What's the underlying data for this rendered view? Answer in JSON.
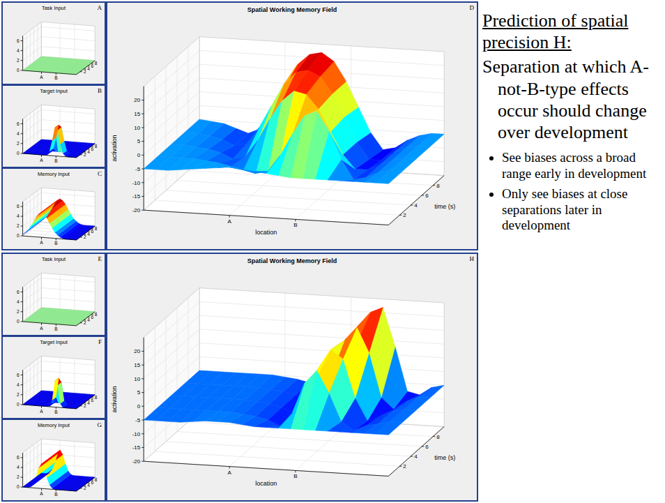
{
  "slide": {
    "heading": "Prediction of spatial precision H:",
    "text": "Separation at which A-not-B-type effects occur should change over development",
    "bullets": [
      "See biases across a broad range early in development",
      "Only see biases at close separations later in development"
    ]
  },
  "chart_data": [
    {
      "type": "surface",
      "letter": "A",
      "title": "Task Input",
      "color": "#8fe88f",
      "x": [
        0,
        5,
        10,
        15,
        20,
        25,
        30,
        35,
        40,
        45,
        50,
        55,
        60,
        65,
        70,
        75,
        80,
        85,
        90,
        95,
        100
      ],
      "xlim": [
        0,
        100
      ],
      "xticks": [
        {
          "value": 35,
          "label": "A"
        },
        {
          "value": 62,
          "label": "B"
        }
      ],
      "ylim": [
        0,
        10
      ],
      "yticks": [
        2,
        4,
        6,
        8
      ],
      "zlim": [
        0,
        7
      ],
      "zticks": [
        0,
        2,
        4,
        6
      ],
      "rows": [
        {
          "time": 0,
          "values": [
            0,
            0,
            0,
            0,
            0,
            0,
            0,
            0,
            0,
            0,
            0,
            0,
            0,
            0,
            0,
            0,
            0,
            0,
            0,
            0,
            0
          ]
        },
        {
          "time": 10,
          "values": [
            0,
            0,
            0,
            0,
            0,
            0,
            0,
            0,
            0,
            0,
            0,
            0,
            0,
            0,
            0,
            0,
            0,
            0,
            0,
            0,
            0
          ]
        }
      ]
    },
    {
      "type": "surface",
      "letter": "B",
      "title": "Target Input",
      "x": [
        0,
        5,
        10,
        15,
        20,
        25,
        30,
        35,
        40,
        45,
        50,
        55,
        60,
        65,
        70,
        75,
        80,
        85,
        90,
        95,
        100
      ],
      "xlim": [
        0,
        100
      ],
      "xticks": [
        {
          "value": 35,
          "label": "A"
        },
        {
          "value": 62,
          "label": "B"
        }
      ],
      "ylim": [
        0,
        10
      ],
      "yticks": [
        2,
        4,
        6,
        8
      ],
      "zlim": [
        0,
        7
      ],
      "zticks": [
        0,
        2,
        4,
        6
      ],
      "rows": [
        {
          "time": 0,
          "values": [
            0,
            0,
            0,
            0,
            0,
            0,
            0,
            0,
            0,
            0.1,
            0.8,
            3.0,
            5.7,
            5.3,
            2.5,
            0.6,
            0.1,
            0,
            0,
            0,
            0
          ]
        },
        {
          "time": 2,
          "values": [
            0,
            0,
            0,
            0,
            0,
            0,
            0,
            0,
            0,
            0.1,
            0.8,
            3.0,
            5.7,
            5.3,
            2.5,
            0.6,
            0.1,
            0,
            0,
            0,
            0
          ]
        },
        {
          "time": 3,
          "values": [
            0,
            0,
            0,
            0,
            0,
            0,
            0,
            0,
            0,
            0,
            0,
            0,
            0,
            0,
            0,
            0,
            0,
            0,
            0,
            0,
            0
          ]
        },
        {
          "time": 10,
          "values": [
            0,
            0,
            0,
            0,
            0,
            0,
            0,
            0,
            0,
            0,
            0,
            0,
            0,
            0,
            0,
            0,
            0,
            0,
            0,
            0,
            0
          ]
        }
      ]
    },
    {
      "type": "surface",
      "letter": "C",
      "title": "Memory Input",
      "x": [
        0,
        5,
        10,
        15,
        20,
        25,
        30,
        35,
        40,
        45,
        50,
        55,
        60,
        65,
        70,
        75,
        80,
        85,
        90,
        95,
        100
      ],
      "xlim": [
        0,
        100
      ],
      "xticks": [
        {
          "value": 35,
          "label": "A"
        },
        {
          "value": 62,
          "label": "B"
        }
      ],
      "ylim": [
        0,
        10
      ],
      "yticks": [
        2,
        4,
        6,
        8
      ],
      "zlim": [
        0,
        7
      ],
      "zticks": [
        0,
        2,
        4,
        6
      ],
      "rows": [
        {
          "time": 0,
          "values": [
            0.3,
            0.7,
            1.2,
            2.1,
            3.0,
            4.0,
            4.7,
            5.0,
            4.7,
            4.0,
            3.0,
            2.1,
            1.2,
            0.7,
            0.3,
            0.1,
            0,
            0,
            0,
            0,
            0
          ]
        },
        {
          "time": 10,
          "values": [
            0.3,
            0.7,
            1.2,
            2.1,
            3.0,
            4.0,
            4.7,
            5.0,
            4.7,
            4.0,
            3.0,
            2.1,
            1.2,
            0.7,
            0.3,
            0.1,
            0,
            0,
            0,
            0,
            0
          ]
        }
      ]
    },
    {
      "type": "surface",
      "letter": "D",
      "title": "Spatial Working Memory Field",
      "x_label": "location",
      "y_label": "time (s)",
      "z_label": "activation",
      "x": [
        0,
        5,
        10,
        15,
        20,
        25,
        30,
        35,
        40,
        45,
        50,
        55,
        60,
        65,
        70,
        75,
        80,
        85,
        90,
        95,
        100
      ],
      "xlim": [
        0,
        100
      ],
      "xticks": [
        {
          "value": 35,
          "label": "A"
        },
        {
          "value": 62,
          "label": "B"
        }
      ],
      "ylim": [
        0,
        10
      ],
      "yticks": [
        2,
        4,
        6,
        8
      ],
      "zlim": [
        -20,
        25
      ],
      "zticks": [
        -20,
        -15,
        -10,
        -5,
        0,
        5,
        10,
        15,
        20
      ],
      "rows": [
        {
          "time": 0,
          "values": [
            -5,
            -5,
            -5,
            -4.5,
            -4,
            -3.5,
            -3,
            -2.5,
            -3,
            -3.5,
            -4,
            -4.5,
            -5,
            -5,
            -5,
            -5,
            -5,
            -5,
            -5,
            -5,
            -5
          ]
        },
        {
          "time": 2.5,
          "values": [
            -5,
            -5,
            -5,
            -5,
            -5.5,
            -6,
            -7,
            -8,
            -9,
            -8,
            -2,
            6,
            13,
            15,
            8,
            -2,
            -9,
            -8,
            -6,
            -5,
            -5
          ]
        },
        {
          "time": 5,
          "values": [
            -5,
            -5,
            -5.5,
            -6,
            -7,
            -9,
            -8,
            -2,
            6,
            13,
            17,
            16,
            11,
            3,
            -5,
            -10,
            -10,
            -8,
            -6,
            -5,
            -5
          ]
        },
        {
          "time": 7.5,
          "values": [
            -5,
            -5.5,
            -6,
            -7,
            -9,
            -8,
            -2,
            6,
            14,
            19,
            20,
            18,
            12,
            4,
            -5,
            -11,
            -11,
            -8,
            -6,
            -5,
            -5
          ]
        },
        {
          "time": 10,
          "values": [
            -5,
            -5.5,
            -6,
            -7.5,
            -9,
            -7,
            0,
            9,
            17,
            21,
            22,
            19,
            12,
            3,
            -6,
            -12,
            -11,
            -8,
            -6,
            -5,
            -5
          ]
        }
      ]
    },
    {
      "type": "surface",
      "letter": "E",
      "title": "Task Input",
      "color": "#8fe88f",
      "x": [
        0,
        5,
        10,
        15,
        20,
        25,
        30,
        35,
        40,
        45,
        50,
        55,
        60,
        65,
        70,
        75,
        80,
        85,
        90,
        95,
        100
      ],
      "xlim": [
        0,
        100
      ],
      "xticks": [
        {
          "value": 35,
          "label": "A"
        },
        {
          "value": 62,
          "label": "B"
        }
      ],
      "ylim": [
        0,
        10
      ],
      "yticks": [
        2,
        4,
        6,
        8
      ],
      "zlim": [
        0,
        7
      ],
      "zticks": [
        0,
        2,
        4,
        6
      ],
      "rows": [
        {
          "time": 0,
          "values": [
            0,
            0,
            0,
            0,
            0,
            0,
            0,
            0,
            0,
            0,
            0,
            0,
            0,
            0,
            0,
            0,
            0,
            0,
            0,
            0,
            0
          ]
        },
        {
          "time": 10,
          "values": [
            0,
            0,
            0,
            0,
            0,
            0,
            0,
            0,
            0,
            0,
            0,
            0,
            0,
            0,
            0,
            0,
            0,
            0,
            0,
            0,
            0
          ]
        }
      ]
    },
    {
      "type": "surface",
      "letter": "F",
      "title": "Target Input",
      "x": [
        0,
        5,
        10,
        15,
        20,
        25,
        30,
        35,
        40,
        45,
        50,
        55,
        60,
        65,
        70,
        75,
        80,
        85,
        90,
        95,
        100
      ],
      "xlim": [
        0,
        100
      ],
      "xticks": [
        {
          "value": 35,
          "label": "A"
        },
        {
          "value": 62,
          "label": "B"
        }
      ],
      "ylim": [
        0,
        10
      ],
      "yticks": [
        2,
        4,
        6,
        8
      ],
      "zlim": [
        0,
        7
      ],
      "zticks": [
        0,
        2,
        4,
        6
      ],
      "rows": [
        {
          "time": 0,
          "values": [
            0,
            0,
            0,
            0,
            0,
            0,
            0,
            0,
            0,
            0,
            0.1,
            1.3,
            5.3,
            4.5,
            0.8,
            0,
            0,
            0,
            0,
            0,
            0
          ]
        },
        {
          "time": 2,
          "values": [
            0,
            0,
            0,
            0,
            0,
            0,
            0,
            0,
            0,
            0,
            0.1,
            1.3,
            5.3,
            4.5,
            0.8,
            0,
            0,
            0,
            0,
            0,
            0
          ]
        },
        {
          "time": 3,
          "values": [
            0,
            0,
            0,
            0,
            0,
            0,
            0,
            0,
            0,
            0,
            0,
            0,
            0,
            0,
            0,
            0,
            0,
            0,
            0,
            0,
            0
          ]
        },
        {
          "time": 10,
          "values": [
            0,
            0,
            0,
            0,
            0,
            0,
            0,
            0,
            0,
            0,
            0,
            0,
            0,
            0,
            0,
            0,
            0,
            0,
            0,
            0,
            0
          ]
        }
      ]
    },
    {
      "type": "surface",
      "letter": "G",
      "title": "Memory Input",
      "x": [
        0,
        5,
        10,
        15,
        20,
        25,
        30,
        35,
        40,
        45,
        50,
        55,
        60,
        65,
        70,
        75,
        80,
        85,
        90,
        95,
        100
      ],
      "xlim": [
        0,
        100
      ],
      "xticks": [
        {
          "value": 35,
          "label": "A"
        },
        {
          "value": 62,
          "label": "B"
        }
      ],
      "ylim": [
        0,
        10
      ],
      "yticks": [
        2,
        4,
        6,
        8
      ],
      "zlim": [
        0,
        7
      ],
      "zticks": [
        0,
        2,
        4,
        6
      ],
      "rows": [
        {
          "time": 0,
          "values": [
            0,
            0,
            0,
            0.2,
            0.9,
            2.3,
            4.1,
            5.0,
            4.1,
            2.3,
            0.9,
            0.2,
            0,
            0,
            0,
            0,
            0,
            0,
            0,
            0,
            0
          ]
        },
        {
          "time": 10,
          "values": [
            0,
            0,
            0,
            0.2,
            0.9,
            2.3,
            4.1,
            5.0,
            4.1,
            2.3,
            0.9,
            0.2,
            0,
            0,
            0,
            0,
            0,
            0,
            0,
            0,
            0
          ]
        }
      ]
    },
    {
      "type": "surface",
      "letter": "H",
      "title": "Spatial Working Memory Field",
      "x_label": "location",
      "y_label": "time (s)",
      "z_label": "activation",
      "x": [
        0,
        5,
        10,
        15,
        20,
        25,
        30,
        35,
        40,
        45,
        50,
        55,
        60,
        65,
        70,
        75,
        80,
        85,
        90,
        95,
        100
      ],
      "xlim": [
        0,
        100
      ],
      "xticks": [
        {
          "value": 35,
          "label": "A"
        },
        {
          "value": 62,
          "label": "B"
        }
      ],
      "ylim": [
        0,
        10
      ],
      "yticks": [
        2,
        4,
        6,
        8
      ],
      "zlim": [
        -20,
        25
      ],
      "zticks": [
        -20,
        -15,
        -10,
        -5,
        0,
        5,
        10,
        15,
        20
      ],
      "rows": [
        {
          "time": 0,
          "values": [
            -5,
            -5,
            -5,
            -5,
            -4.5,
            -4,
            -4,
            -4,
            -4.5,
            -5,
            -5,
            -5,
            -5,
            -5,
            -5,
            -5,
            -5,
            -5,
            -5,
            -5,
            -5
          ]
        },
        {
          "time": 2.5,
          "values": [
            -5,
            -5,
            -5,
            -5,
            -5,
            -5,
            -5,
            -5.5,
            -6,
            -7,
            -9,
            -4,
            7,
            12,
            4,
            -6,
            -9,
            -7,
            -6,
            -5,
            -5
          ]
        },
        {
          "time": 5,
          "values": [
            -5,
            -5,
            -5,
            -5,
            -5,
            -5,
            -5,
            -5.5,
            -6,
            -7,
            -9,
            -6,
            6,
            15,
            12,
            -2,
            -10,
            -8,
            -6,
            -5,
            -5
          ]
        },
        {
          "time": 7.5,
          "values": [
            -5,
            -5,
            -5,
            -5,
            -5,
            -5,
            -5,
            -5.5,
            -6,
            -7,
            -9,
            -8,
            2,
            14,
            19,
            10,
            -6,
            -10,
            -7,
            -5,
            -5
          ]
        },
        {
          "time": 10,
          "values": [
            -5,
            -5,
            -5,
            -5,
            -5,
            -5,
            -5,
            -5.5,
            -6,
            -7,
            -9,
            -9,
            -2,
            10,
            20,
            22,
            8,
            -8,
            -9,
            -6,
            -5
          ]
        }
      ]
    }
  ]
}
